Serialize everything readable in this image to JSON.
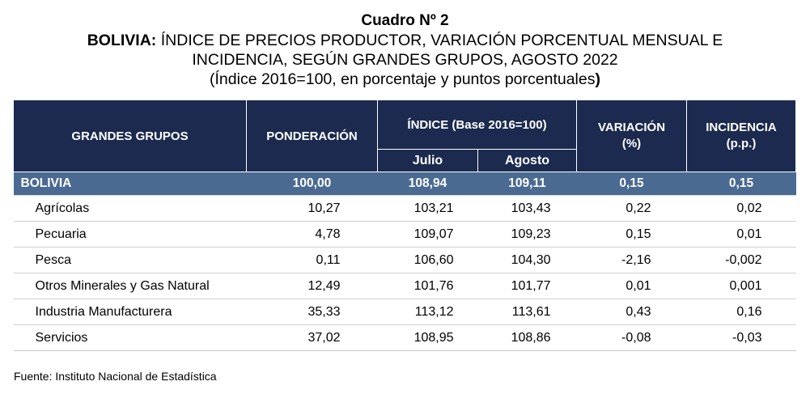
{
  "title": {
    "line1": "Cuadro Nº 2",
    "line2_bold": "BOLIVIA:",
    "line2_rest": " ÍNDICE DE PRECIOS PRODUCTOR, VARIACIÓN PORCENTUAL MENSUAL E",
    "line3": "INCIDENCIA, SEGÚN GRANDES GRUPOS, AGOSTO 2022",
    "line4_a": "(Índice 2016=100, en porcentaje y puntos porcentuales",
    "line4_b": ")"
  },
  "headers": {
    "grupos": "GRANDES GRUPOS",
    "ponderacion": "PONDERACIÓN",
    "indice": "ÍNDICE (Base 2016=100)",
    "julio": "Julio",
    "agosto": "Agosto",
    "variacion_1": "VARIACIÓN",
    "variacion_2": "(%)",
    "incidencia_1": "INCIDENCIA",
    "incidencia_2": "(p.p.)"
  },
  "total_row": {
    "name": "BOLIVIA",
    "ponderacion": "100,00",
    "julio": "108,94",
    "agosto": "109,11",
    "variacion": "0,15",
    "incidencia": "0,15"
  },
  "rows": [
    {
      "name": "Agrícolas",
      "ponderacion": "10,27",
      "julio": "103,21",
      "agosto": "103,43",
      "variacion": "0,22",
      "incidencia": "0,02"
    },
    {
      "name": "Pecuaria",
      "ponderacion": "4,78",
      "julio": "109,07",
      "agosto": "109,23",
      "variacion": "0,15",
      "incidencia": "0,01"
    },
    {
      "name": "Pesca",
      "ponderacion": "0,11",
      "julio": "106,60",
      "agosto": "104,30",
      "variacion": "-2,16",
      "incidencia": "-0,002"
    },
    {
      "name": "Otros Minerales y Gas Natural",
      "ponderacion": "12,49",
      "julio": "101,76",
      "agosto": "101,77",
      "variacion": "0,01",
      "incidencia": "0,001"
    },
    {
      "name": "Industria Manufacturera",
      "ponderacion": "35,33",
      "julio": "113,12",
      "agosto": "113,61",
      "variacion": "0,43",
      "incidencia": "0,16"
    },
    {
      "name": "Servicios",
      "ponderacion": "37,02",
      "julio": "108,95",
      "agosto": "108,86",
      "variacion": "-0,08",
      "incidencia": "-0,03"
    }
  ],
  "source": "Fuente: Instituto Nacional de Estadística",
  "colors": {
    "header_bg": "#1b2a4e",
    "total_row_bg": "#4b6a92"
  }
}
